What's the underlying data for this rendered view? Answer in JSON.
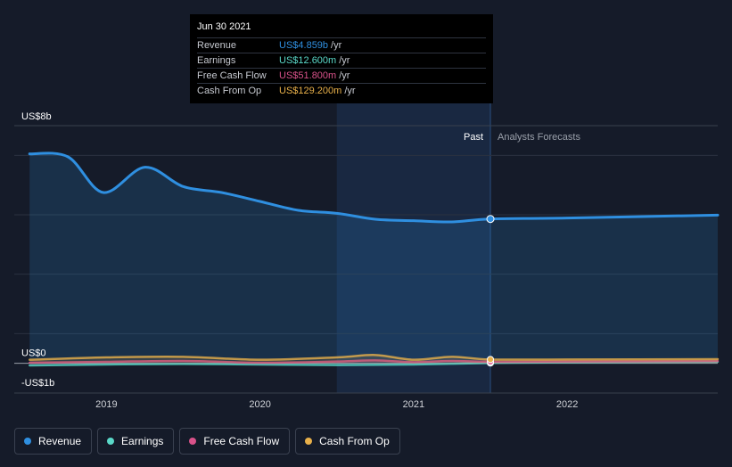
{
  "tooltip": {
    "date": "Jun 30 2021",
    "rows": [
      {
        "label": "Revenue",
        "value": "US$4.859b",
        "unit": "/yr",
        "color": "#2f8fe0"
      },
      {
        "label": "Earnings",
        "value": "US$12.600m",
        "unit": "/yr",
        "color": "#5ad8c8"
      },
      {
        "label": "Free Cash Flow",
        "value": "US$51.800m",
        "unit": "/yr",
        "color": "#d9528a"
      },
      {
        "label": "Cash From Op",
        "value": "US$129.200m",
        "unit": "/yr",
        "color": "#e8b04a"
      }
    ]
  },
  "legend": [
    {
      "label": "Revenue",
      "color": "#2f8fe0"
    },
    {
      "label": "Earnings",
      "color": "#5ad8c8"
    },
    {
      "label": "Free Cash Flow",
      "color": "#d9528a"
    },
    {
      "label": "Cash From Op",
      "color": "#e8b04a"
    }
  ],
  "chart_data": {
    "type": "area",
    "y_axis_labels": [
      "US$8b",
      "US$0",
      "-US$1b"
    ],
    "ylim": [
      -1,
      8
    ],
    "ylabel_unit": "US$ billions",
    "x_tick_labels": [
      "2019",
      "2020",
      "2021",
      "2022"
    ],
    "x_ticks": [
      2019.0,
      2020.0,
      2021.0,
      2022.0
    ],
    "xlim": [
      2018.4,
      2022.98
    ],
    "region_labels": {
      "past": "Past",
      "forecast": "Analysts Forecasts"
    },
    "past_end": 2021.5,
    "highlight_start": 2020.5,
    "grid": true,
    "series": [
      {
        "name": "Revenue",
        "color": "#2f8fe0",
        "x": [
          2018.5,
          2018.75,
          2018.98,
          2019.25,
          2019.5,
          2019.75,
          2020.0,
          2020.25,
          2020.5,
          2020.75,
          2021.0,
          2021.25,
          2021.5,
          2022.0,
          2022.98
        ],
        "y": [
          7.05,
          6.95,
          5.75,
          6.6,
          5.95,
          5.75,
          5.45,
          5.15,
          5.05,
          4.85,
          4.8,
          4.76,
          4.859,
          4.89,
          4.99
        ]
      },
      {
        "name": "Earnings",
        "color": "#5ad8c8",
        "x": [
          2018.5,
          2019.0,
          2019.5,
          2020.0,
          2020.5,
          2021.0,
          2021.5,
          2022.0,
          2022.98
        ],
        "y": [
          -0.07,
          -0.04,
          -0.02,
          -0.04,
          -0.06,
          -0.04,
          0.0126,
          0.03,
          0.05
        ]
      },
      {
        "name": "Free Cash Flow",
        "color": "#d9528a",
        "x": [
          2018.5,
          2019.0,
          2019.5,
          2020.0,
          2020.5,
          2020.75,
          2021.0,
          2021.25,
          2021.5,
          2022.0,
          2022.98
        ],
        "y": [
          0.02,
          0.05,
          0.08,
          0.02,
          0.06,
          0.1,
          0.04,
          0.08,
          0.0518,
          0.06,
          0.08
        ]
      },
      {
        "name": "Cash From Op",
        "color": "#e8b04a",
        "x": [
          2018.5,
          2019.0,
          2019.5,
          2020.0,
          2020.5,
          2020.75,
          2021.0,
          2021.25,
          2021.5,
          2022.0,
          2022.98
        ],
        "y": [
          0.12,
          0.2,
          0.22,
          0.12,
          0.2,
          0.28,
          0.12,
          0.22,
          0.1292,
          0.13,
          0.14
        ]
      }
    ]
  }
}
